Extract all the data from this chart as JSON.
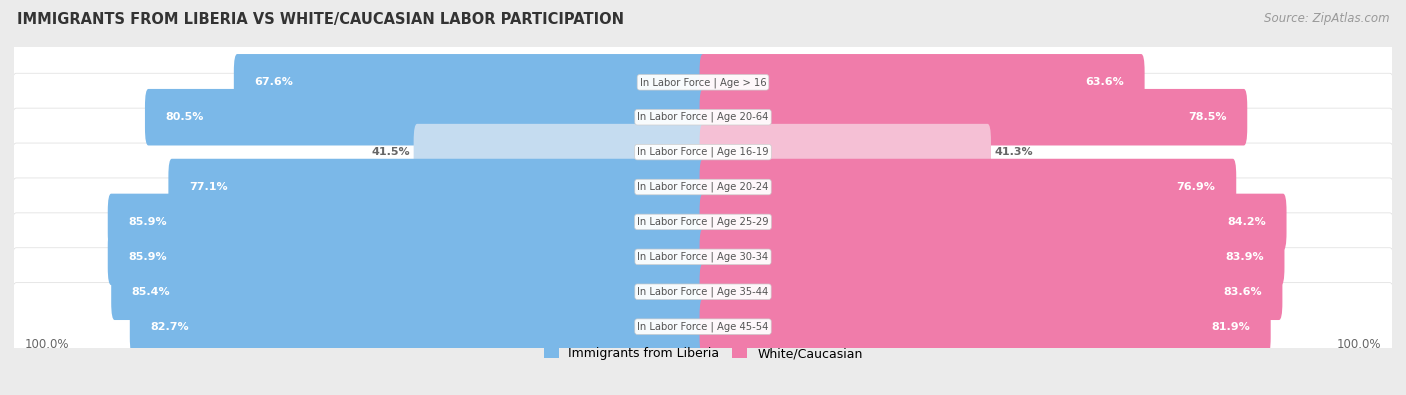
{
  "title": "IMMIGRANTS FROM LIBERIA VS WHITE/CAUCASIAN LABOR PARTICIPATION",
  "source": "Source: ZipAtlas.com",
  "categories": [
    "In Labor Force | Age > 16",
    "In Labor Force | Age 20-64",
    "In Labor Force | Age 16-19",
    "In Labor Force | Age 20-24",
    "In Labor Force | Age 25-29",
    "In Labor Force | Age 30-34",
    "In Labor Force | Age 35-44",
    "In Labor Force | Age 45-54"
  ],
  "liberia_values": [
    67.6,
    80.5,
    41.5,
    77.1,
    85.9,
    85.9,
    85.4,
    82.7
  ],
  "white_values": [
    63.6,
    78.5,
    41.3,
    76.9,
    84.2,
    83.9,
    83.6,
    81.9
  ],
  "liberia_color_strong": "#7bb8e8",
  "liberia_color_weak": "#c5dcf0",
  "white_color_strong": "#f07caa",
  "white_color_weak": "#f5c0d5",
  "row_bg_color": "#ffffff",
  "outer_bg_color": "#ebebeb",
  "label_color_white": "#ffffff",
  "label_color_dark": "#666666",
  "cat_label_color": "#555555",
  "footer_label": "100.0%",
  "legend_liberia": "Immigrants from Liberia",
  "legend_white": "White/Caucasian",
  "title_color": "#333333",
  "source_color": "#999999"
}
